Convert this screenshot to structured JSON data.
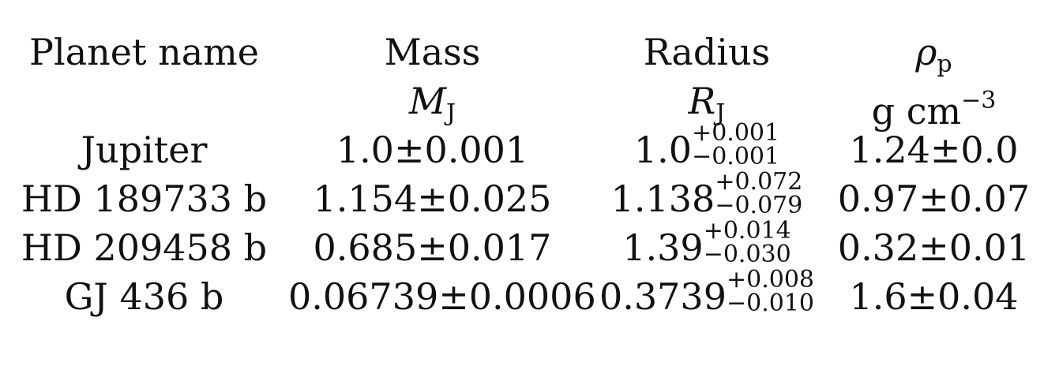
{
  "header": {
    "col0": "Planet name",
    "col1": "Mass",
    "col2": "Radius",
    "col3_symbol": "ρ",
    "col3_sub": "p"
  },
  "units": {
    "col1_symbol": "M",
    "col1_sub": "J",
    "col2_symbol": "R",
    "col2_sub": "J",
    "col3_base": "g cm",
    "col3_exp": "−3"
  },
  "rows": [
    {
      "name": "Jupiter",
      "mass": "1.0±0.001",
      "radius": "1.0",
      "radius_plus": "+0.001",
      "radius_minus": "−0.001",
      "density": "1.24±0.0"
    },
    {
      "name": "HD 189733 b",
      "mass": "1.154±0.025",
      "radius": "1.138",
      "radius_plus": "+0.072",
      "radius_minus": "−0.079",
      "density": "0.97±0.07"
    },
    {
      "name": "HD 209458 b",
      "mass": "0.685±0.017",
      "radius": "1.39",
      "radius_plus": "+0.014",
      "radius_minus": "−0.030",
      "density": "0.32±0.01"
    },
    {
      "name": "GJ 436 b",
      "mass": "0.06739±0.0006",
      "radius": "0.3739",
      "radius_plus": "+0.008",
      "radius_minus": "−0.010",
      "density": "1.6±0.04"
    }
  ]
}
